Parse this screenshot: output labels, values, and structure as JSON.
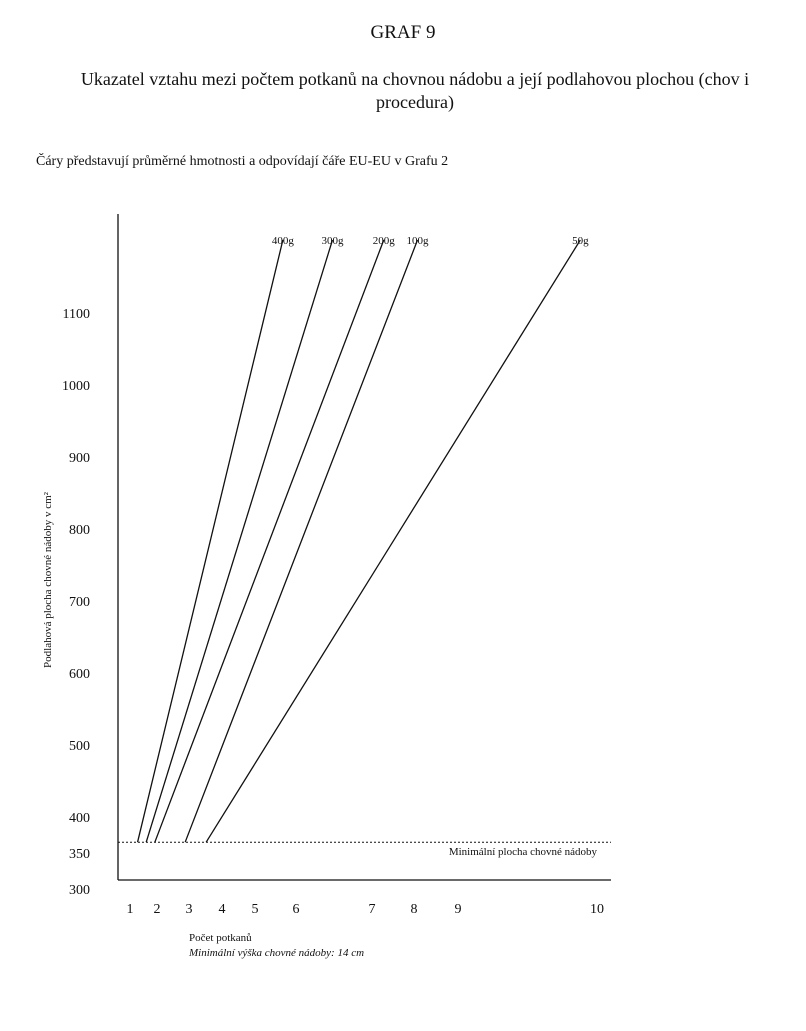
{
  "page": {
    "graf_title": "GRAF 9",
    "main_title": "Ukazatel vztahu mezi počtem potkanů na chovnou nádobu a její podlahovou plochou (chov i procedura)",
    "note": "Čáry představují průměrné hmotnosti a odpovídají čáře EU-EU v Grafu 2",
    "ylabel": "Podlahová plocha chovné nádoby v cm²",
    "xlabel": "Počet potkanů",
    "xsub": "Minimální výška chovné nádoby: 14 cm"
  },
  "chart_data": {
    "type": "line",
    "title": "Ukazatel vztahu mezi počtem potkanů na chovnou nádobu a její podlahovou plochou (chov i procedura)",
    "xlabel": "Počet potkanů",
    "ylabel": "Podlahová plocha chovné nádoby v cm²",
    "x_ticks": [
      "1",
      "2",
      "3",
      "4",
      "5",
      "6",
      "7",
      "8",
      "9",
      "10"
    ],
    "y_ticks": [
      "300",
      "350",
      "400",
      "500",
      "600",
      "700",
      "800",
      "900",
      "1000",
      "1100"
    ],
    "series": [
      {
        "name": "400g",
        "x": [
          1.28,
          5.68
        ],
        "y": [
          365,
          1205
        ]
      },
      {
        "name": "300g",
        "x": [
          1.6,
          6.48
        ],
        "y": [
          365,
          1205
        ]
      },
      {
        "name": "200g",
        "x": [
          1.92,
          7.28
        ],
        "y": [
          365,
          1205
        ]
      },
      {
        "name": "100g",
        "x": [
          2.88,
          8.08
        ],
        "y": [
          365,
          1205
        ]
      },
      {
        "name": "50g",
        "x": [
          3.52,
          9.88
        ],
        "y": [
          365,
          1205
        ]
      }
    ],
    "threshold": {
      "y": 365,
      "label": "Minimální plocha chovné nádoby",
      "style": "dashed"
    },
    "grid": false,
    "legend": "labels at line ends"
  }
}
